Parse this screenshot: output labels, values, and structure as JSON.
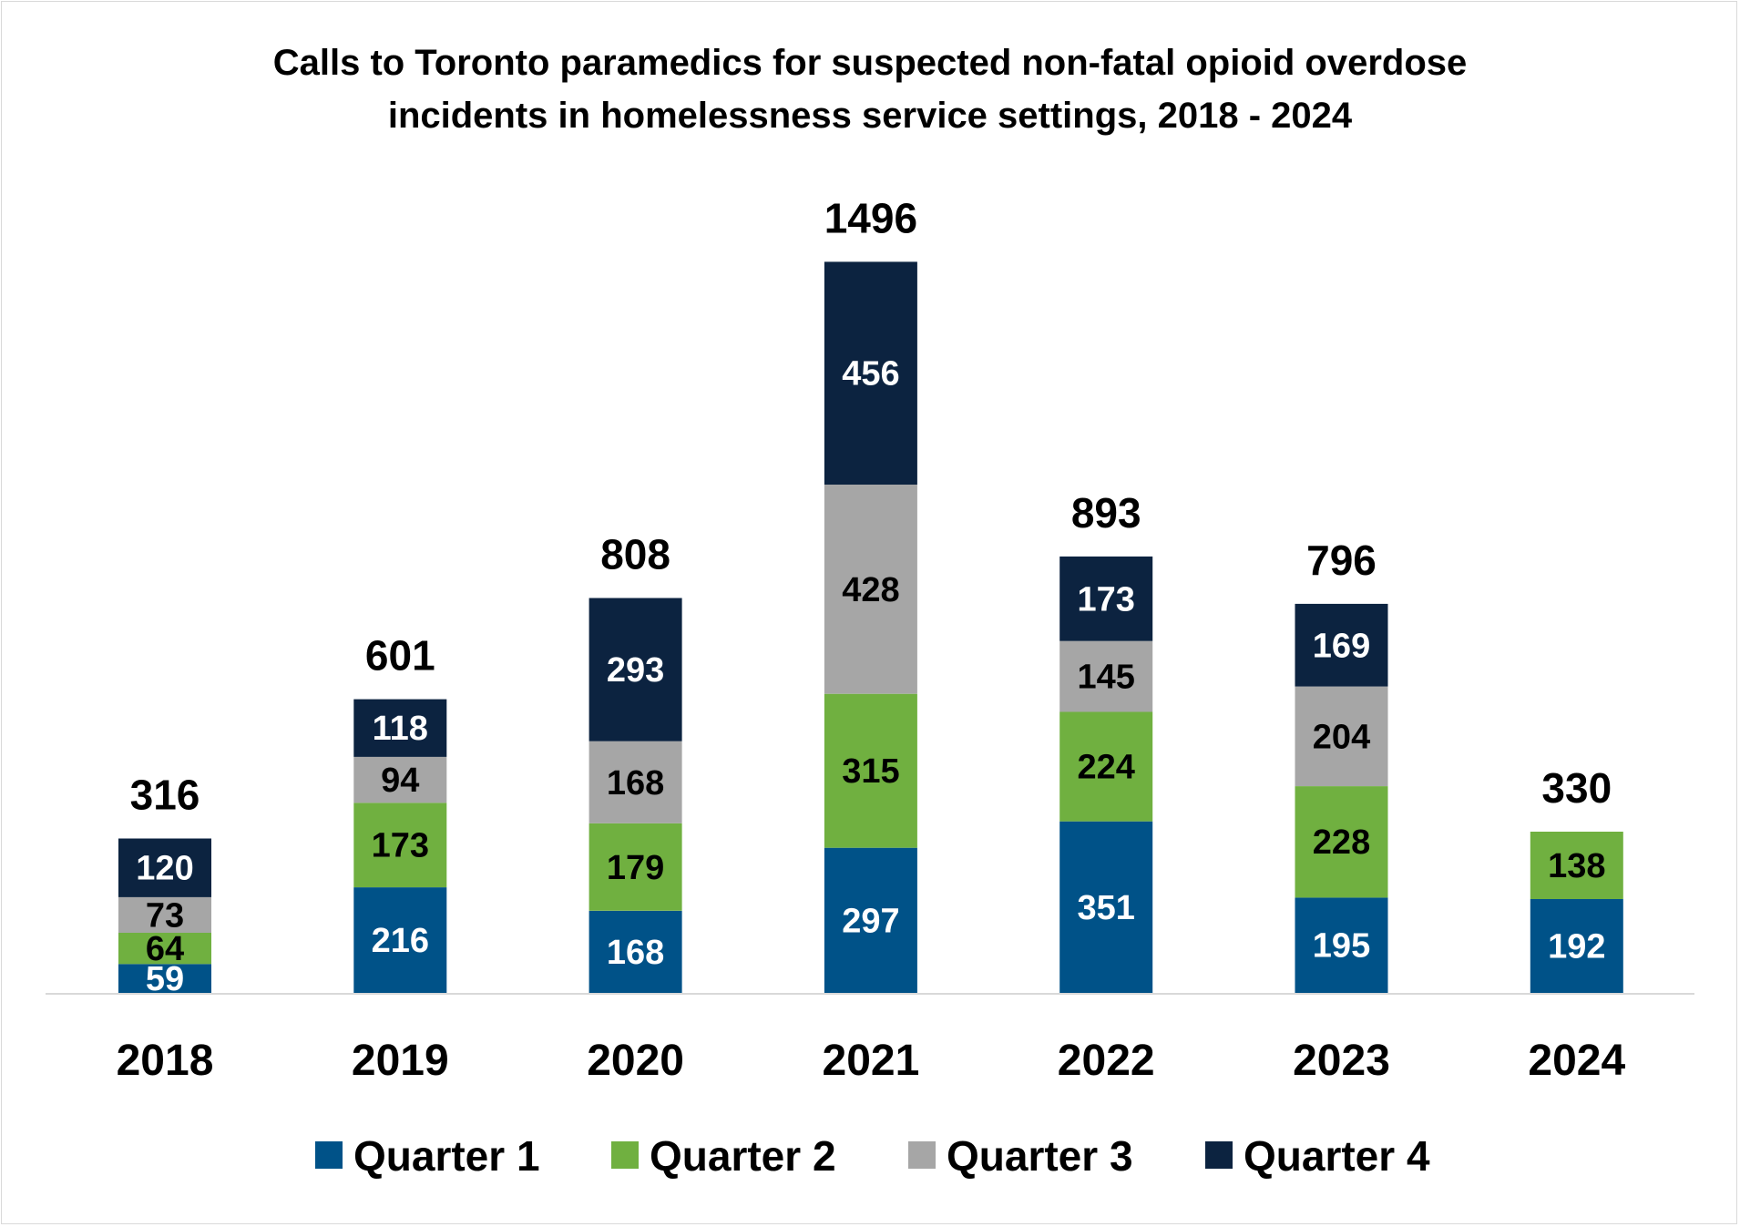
{
  "chart_data": {
    "type": "bar",
    "stacked": true,
    "title_lines": [
      "Calls to Toronto paramedics for suspected non-fatal opioid overdose",
      "incidents in homelessness service settings, 2018 - 2024"
    ],
    "categories": [
      "2018",
      "2019",
      "2020",
      "2021",
      "2022",
      "2023",
      "2024"
    ],
    "series": [
      {
        "name": "Quarter 1",
        "color": "#005288",
        "label_color": "#ffffff",
        "values": [
          59,
          216,
          168,
          297,
          351,
          195,
          192
        ]
      },
      {
        "name": "Quarter 2",
        "color": "#70b040",
        "label_color": "#000000",
        "values": [
          64,
          173,
          179,
          315,
          224,
          228,
          138
        ]
      },
      {
        "name": "Quarter 3",
        "color": "#a6a6a6",
        "label_color": "#000000",
        "values": [
          73,
          94,
          168,
          428,
          145,
          204,
          null
        ]
      },
      {
        "name": "Quarter 4",
        "color": "#0c2340",
        "label_color": "#ffffff",
        "values": [
          120,
          118,
          293,
          456,
          173,
          169,
          null
        ]
      }
    ],
    "totals": [
      316,
      601,
      808,
      1496,
      893,
      796,
      330
    ],
    "ylim": [
      0,
      1600
    ],
    "grid": false,
    "legend_position": "bottom",
    "xlabel": "",
    "ylabel": ""
  }
}
